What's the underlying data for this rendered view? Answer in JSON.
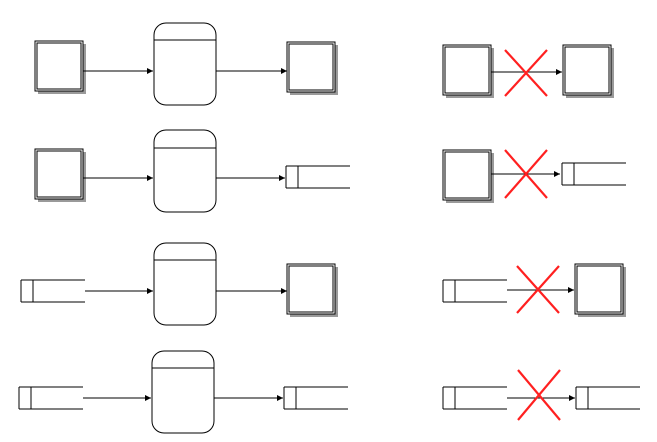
{
  "diagram": {
    "title": "",
    "valid_patterns": [
      {
        "source": "entity",
        "via": "process",
        "target": "entity"
      },
      {
        "source": "entity",
        "via": "process",
        "target": "data-store"
      },
      {
        "source": "data-store",
        "via": "process",
        "target": "entity"
      },
      {
        "source": "data-store",
        "via": "process",
        "target": "data-store"
      }
    ],
    "invalid_patterns": [
      {
        "source": "entity",
        "target": "entity"
      },
      {
        "source": "entity",
        "target": "data-store"
      },
      {
        "source": "data-store",
        "target": "entity"
      },
      {
        "source": "data-store",
        "target": "data-store"
      }
    ],
    "colors": {
      "line": "#000000",
      "invalid_mark": "#ff2020",
      "shadow": "#9a9a9a",
      "background": "#ffffff"
    }
  }
}
